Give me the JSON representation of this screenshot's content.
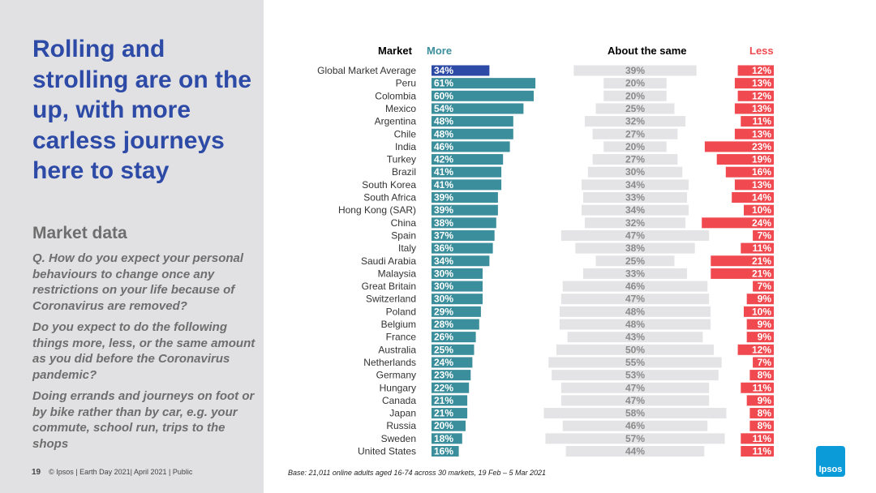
{
  "slide": {
    "title": "Rolling and strolling are on the up, with more carless journeys here to stay",
    "subtitle": "Market data",
    "question_1": "Q. How do you expect your personal behaviours to change once any restrictions on your life because of Coronavirus are removed?",
    "question_2": "Do you expect to do the following things more, less, or the same amount as you did before the Coronavirus pandemic?",
    "question_3": "Doing errands and journeys on foot or by bike rather than by car, e.g. your commute, school run, trips to the shops",
    "page_number": "19",
    "footer": "© Ipsos | Earth Day 2021| April 2021 | Public",
    "base": "Base: 21,011 online adults aged 16-74 across 30 markets,  19 Feb – 5 Mar 2021",
    "logo": "Ipsos"
  },
  "colors": {
    "highlight": "#2d4aa6",
    "more": "#3b8e9b",
    "same": "#e4e4e6",
    "less": "#f0494f"
  },
  "chart_data": {
    "type": "bar",
    "headers": {
      "market": "Market",
      "more": "More",
      "same": "About the same",
      "less": "Less"
    },
    "categories": [
      "Global Market Average",
      "Peru",
      "Colombia",
      "Mexico",
      "Argentina",
      "Chile",
      "India",
      "Turkey",
      "Brazil",
      "South Korea",
      "South Africa",
      "Hong Kong (SAR)",
      "China",
      "Spain",
      "Italy",
      "Saudi Arabia",
      "Malaysia",
      "Great Britain",
      "Switzerland",
      "Poland",
      "Belgium",
      "France",
      "Australia",
      "Netherlands",
      "Germany",
      "Hungary",
      "Canada",
      "Japan",
      "Russia",
      "Sweden",
      "United States"
    ],
    "series": [
      {
        "name": "More",
        "values": [
          34,
          61,
          60,
          54,
          48,
          48,
          46,
          42,
          41,
          41,
          39,
          39,
          38,
          37,
          36,
          34,
          30,
          30,
          30,
          29,
          28,
          26,
          25,
          24,
          23,
          22,
          21,
          21,
          20,
          18,
          16
        ]
      },
      {
        "name": "About the same",
        "values": [
          39,
          20,
          20,
          25,
          32,
          27,
          20,
          27,
          30,
          34,
          33,
          34,
          32,
          47,
          38,
          25,
          33,
          46,
          47,
          48,
          48,
          43,
          50,
          55,
          53,
          47,
          47,
          58,
          46,
          57,
          44
        ]
      },
      {
        "name": "Less",
        "values": [
          12,
          13,
          12,
          13,
          11,
          13,
          23,
          19,
          16,
          13,
          14,
          10,
          24,
          7,
          11,
          21,
          21,
          7,
          9,
          10,
          9,
          9,
          12,
          7,
          8,
          11,
          9,
          8,
          8,
          11,
          11
        ]
      }
    ],
    "value_suffix": "%"
  }
}
